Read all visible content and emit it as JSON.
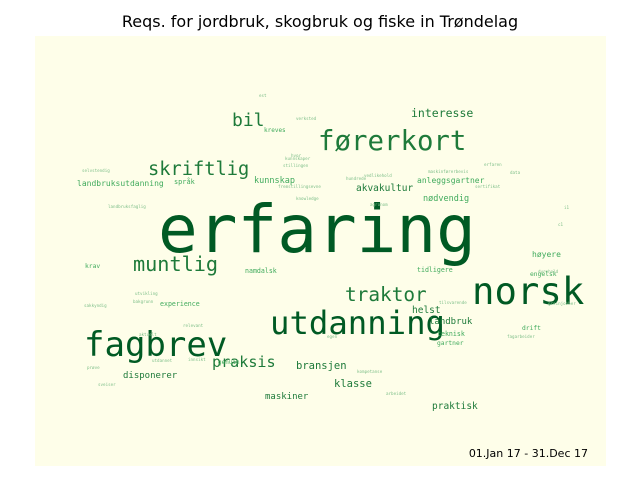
{
  "chart_data": {
    "type": "wordcloud",
    "title": "Reqs. for jordbruk, skogbruk og fiske in Trøndelag",
    "date_range": "01.Jan 17 - 31.Dec 17",
    "background_color": "#fefee9",
    "colors": {
      "strong": "#005a24",
      "medium": "#1e7a3a",
      "light": "#41ab5d",
      "faint": "#7fbf8a"
    },
    "words": [
      {
        "text": "erfaring",
        "weight": 1.0
      },
      {
        "text": "norsk",
        "weight": 0.45
      },
      {
        "text": "fagbrev",
        "weight": 0.41
      },
      {
        "text": "utdanning",
        "weight": 0.39
      },
      {
        "text": "førerkort",
        "weight": 0.33
      },
      {
        "text": "muntlig",
        "weight": 0.28
      },
      {
        "text": "traktor",
        "weight": 0.27
      },
      {
        "text": "skriftlig",
        "weight": 0.26
      },
      {
        "text": "bil",
        "weight": 0.25
      },
      {
        "text": "praksis",
        "weight": 0.21
      },
      {
        "text": "interesse",
        "weight": 0.17
      },
      {
        "text": "bransjen",
        "weight": 0.15
      },
      {
        "text": "klasse",
        "weight": 0.15
      },
      {
        "text": "helst",
        "weight": 0.13
      },
      {
        "text": "praktisk",
        "weight": 0.13
      },
      {
        "text": "akvakultur",
        "weight": 0.13
      },
      {
        "text": "maskiner",
        "weight": 0.12
      },
      {
        "text": "disponerer",
        "weight": 0.12
      },
      {
        "text": "landbruk",
        "weight": 0.12
      },
      {
        "text": "nødvendig",
        "weight": 0.11
      },
      {
        "text": "kunnskap",
        "weight": 0.11
      },
      {
        "text": "høyere",
        "weight": 0.1
      },
      {
        "text": "anleggsgartner",
        "weight": 0.1
      },
      {
        "text": "landbruksutdanning",
        "weight": 0.1
      },
      {
        "text": "språk",
        "weight": 0.09
      },
      {
        "text": "experience",
        "weight": 0.08
      },
      {
        "text": "namdalsk",
        "weight": 0.08
      },
      {
        "text": "tidligere",
        "weight": 0.08
      },
      {
        "text": "teknisk",
        "weight": 0.08
      },
      {
        "text": "gartner",
        "weight": 0.07
      },
      {
        "text": "drift",
        "weight": 0.07
      },
      {
        "text": "engelsk",
        "weight": 0.07
      },
      {
        "text": "krav",
        "weight": 0.07
      },
      {
        "text": "genuin",
        "weight": 0.06
      },
      {
        "text": "kreves",
        "weight": 0.06
      },
      {
        "text": "stillingen",
        "weight": 0.05
      },
      {
        "text": "kunnskaper",
        "weight": 0.05
      },
      {
        "text": "verksted",
        "weight": 0.05
      },
      {
        "text": "knowledge",
        "weight": 0.05
      },
      {
        "text": "agronom",
        "weight": 0.05
      },
      {
        "text": "fremstillingsevne",
        "weight": 0.05
      },
      {
        "text": "sertifikat",
        "weight": 0.05
      },
      {
        "text": "maskinførerbevis",
        "weight": 0.05
      },
      {
        "text": "data",
        "weight": 0.05
      },
      {
        "text": "erfaren",
        "weight": 0.05
      },
      {
        "text": "vedlikehold",
        "weight": 0.05
      },
      {
        "text": "tilsvarende",
        "weight": 0.05
      },
      {
        "text": "landbruksfaglig",
        "weight": 0.05
      },
      {
        "text": "sakkyndig",
        "weight": 0.05
      },
      {
        "text": "bakgrunn",
        "weight": 0.05
      },
      {
        "text": "aktuelt",
        "weight": 0.05
      },
      {
        "text": "utdannet",
        "weight": 0.05
      },
      {
        "text": "relevant",
        "weight": 0.05
      },
      {
        "text": "sveiser",
        "weight": 0.05
      },
      {
        "text": "egen",
        "weight": 0.05
      },
      {
        "text": "kompetanse",
        "weight": 0.05
      },
      {
        "text": "arbeidet",
        "weight": 0.05
      },
      {
        "text": "fagarbeider",
        "weight": 0.05
      },
      {
        "text": "greinjobber",
        "weight": 0.05
      },
      {
        "text": "dyrehold",
        "weight": 0.05
      },
      {
        "text": "selvstendig",
        "weight": 0.05
      },
      {
        "text": "hundrede",
        "weight": 0.05
      },
      {
        "text": "utvikling",
        "weight": 0.05
      },
      {
        "text": "prøve",
        "weight": 0.05
      },
      {
        "text": "innsikt",
        "weight": 0.05
      },
      {
        "text": "hvor",
        "weight": 0.05
      },
      {
        "text": "i1",
        "weight": 0.05
      },
      {
        "text": "c1",
        "weight": 0.05
      },
      {
        "text": "est",
        "weight": 0.05
      }
    ]
  }
}
